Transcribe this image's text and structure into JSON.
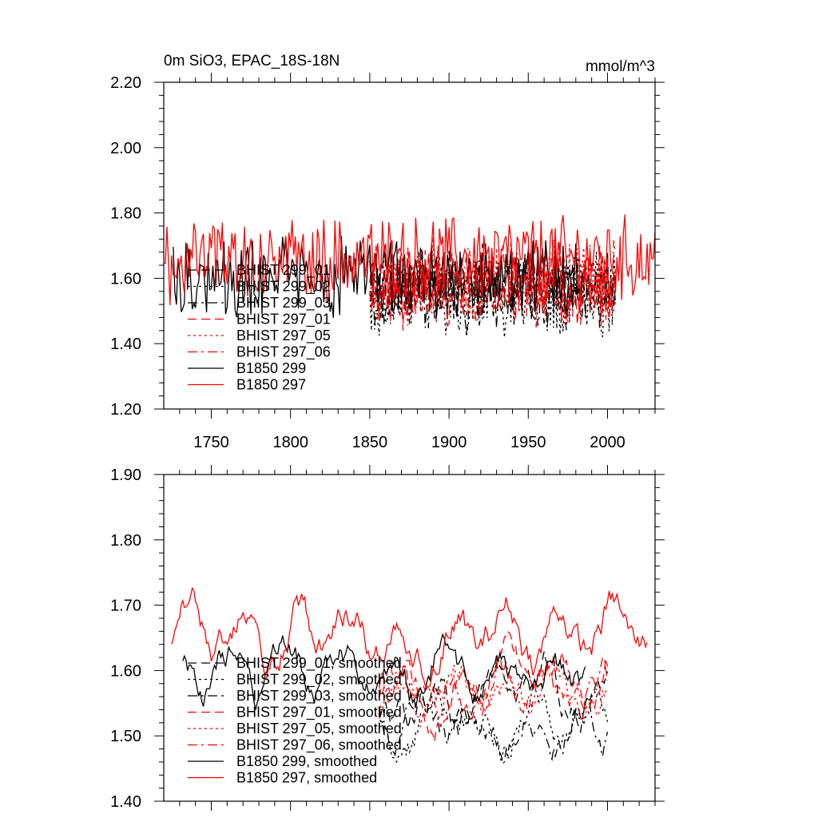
{
  "chart_data": [
    {
      "type": "line",
      "title": "0m SiO3, EPAC_18S-18N",
      "units_label": "mmol/m^3",
      "xlim": [
        1720,
        2030
      ],
      "ylim": [
        1.2,
        2.2
      ],
      "x_ticks": [
        1750,
        1800,
        1850,
        1900,
        1950,
        2000
      ],
      "x_tick_labels": [
        "1750",
        "1800",
        "1850",
        "1900",
        "1950",
        "2000"
      ],
      "y_ticks": [
        1.2,
        1.4,
        1.6,
        1.8,
        2.0,
        2.2
      ],
      "y_tick_labels": [
        "1.20",
        "1.40",
        "1.60",
        "1.80",
        "2.00",
        "2.20"
      ],
      "grid": false,
      "legend_position": "bottom-left",
      "series": [
        {
          "name": "BHIST 299_01",
          "color": "#000000",
          "dash": "dash",
          "x_start": 1850,
          "x_end": 2005,
          "mean": 1.57,
          "amplitude": 0.1,
          "seed": 11
        },
        {
          "name": "BHIST 299_02",
          "color": "#000000",
          "dash": "dot",
          "x_start": 1850,
          "x_end": 2005,
          "mean": 1.55,
          "amplitude": 0.11,
          "seed": 12
        },
        {
          "name": "BHIST 299_03",
          "color": "#000000",
          "dash": "dashdot",
          "x_start": 1850,
          "x_end": 2005,
          "mean": 1.56,
          "amplitude": 0.1,
          "seed": 13
        },
        {
          "name": "BHIST 297_01",
          "color": "#ff0000",
          "dash": "dash",
          "x_start": 1850,
          "x_end": 2005,
          "mean": 1.58,
          "amplitude": 0.11,
          "seed": 21
        },
        {
          "name": "BHIST 297_05",
          "color": "#ff0000",
          "dash": "dot",
          "x_start": 1850,
          "x_end": 2005,
          "mean": 1.59,
          "amplitude": 0.11,
          "seed": 22
        },
        {
          "name": "BHIST 297_06",
          "color": "#ff0000",
          "dash": "dashdot",
          "x_start": 1850,
          "x_end": 2005,
          "mean": 1.58,
          "amplitude": 0.11,
          "seed": 23
        },
        {
          "name": "B1850 299",
          "color": "#000000",
          "dash": "solid",
          "x_start": 1726,
          "x_end": 1985,
          "mean": 1.6,
          "amplitude": 0.1,
          "seed": 31
        },
        {
          "name": "B1850 297",
          "color": "#ff0000",
          "dash": "solid",
          "x_start": 1720,
          "x_end": 2030,
          "mean": 1.66,
          "amplitude": 0.11,
          "seed": 41
        }
      ]
    },
    {
      "type": "line",
      "title": "",
      "xlim": [
        1720,
        2030
      ],
      "ylim": [
        1.4,
        1.9
      ],
      "x_ticks": [
        1750,
        1800,
        1850,
        1900,
        1950,
        2000
      ],
      "y_ticks": [
        1.4,
        1.5,
        1.6,
        1.7,
        1.8,
        1.9
      ],
      "y_tick_labels": [
        "1.40",
        "1.50",
        "1.60",
        "1.70",
        "1.80",
        "1.90"
      ],
      "grid": false,
      "legend_position": "bottom-left",
      "series": [
        {
          "name": "BHIST 299_01, smoothed",
          "color": "#000000",
          "dash": "dash",
          "x_start": 1856,
          "x_end": 2000,
          "mean": 1.54,
          "amplitude": 0.04,
          "seed": 51
        },
        {
          "name": "BHIST 299_02, smoothed",
          "color": "#000000",
          "dash": "dot",
          "x_start": 1856,
          "x_end": 2000,
          "mean": 1.51,
          "amplitude": 0.04,
          "seed": 52
        },
        {
          "name": "BHIST 299_03, smoothed",
          "color": "#000000",
          "dash": "dashdot",
          "x_start": 1856,
          "x_end": 2000,
          "mean": 1.52,
          "amplitude": 0.04,
          "seed": 53
        },
        {
          "name": "BHIST 297_01, smoothed",
          "color": "#ff0000",
          "dash": "dash",
          "x_start": 1856,
          "x_end": 2000,
          "mean": 1.58,
          "amplitude": 0.04,
          "seed": 61
        },
        {
          "name": "BHIST 297_05, smoothed",
          "color": "#ff0000",
          "dash": "dot",
          "x_start": 1856,
          "x_end": 2000,
          "mean": 1.56,
          "amplitude": 0.04,
          "seed": 62
        },
        {
          "name": "BHIST 297_06, smoothed",
          "color": "#ff0000",
          "dash": "dashdot",
          "x_start": 1856,
          "x_end": 2000,
          "mean": 1.57,
          "amplitude": 0.04,
          "seed": 63
        },
        {
          "name": "B1850 299, smoothed",
          "color": "#000000",
          "dash": "solid",
          "x_start": 1732,
          "x_end": 1986,
          "mean": 1.6,
          "amplitude": 0.05,
          "seed": 71
        },
        {
          "name": "B1850 297, smoothed",
          "color": "#ff0000",
          "dash": "solid",
          "x_start": 1725,
          "x_end": 2025,
          "mean": 1.66,
          "amplitude": 0.06,
          "seed": 81
        }
      ]
    }
  ]
}
